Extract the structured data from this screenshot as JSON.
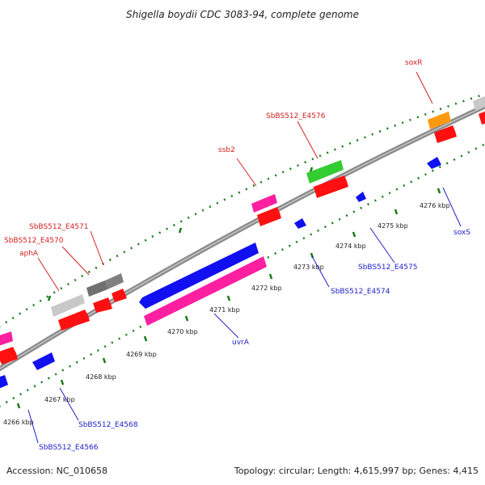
{
  "title": "Shigella boydii CDC 3083-94, complete genome",
  "footer": {
    "accession": "Accession: NC_010658",
    "stats": "Topology: circular; Length: 4,615,997 bp; Genes: 4,415"
  },
  "ticks": [
    {
      "label": "4266 kbp"
    },
    {
      "label": "4267 kbp"
    },
    {
      "label": "4268 kbp"
    },
    {
      "label": "4269 kbp"
    },
    {
      "label": "4270 kbp"
    },
    {
      "label": "4271 kbp"
    },
    {
      "label": "4272 kbp"
    },
    {
      "label": "4273 kbp"
    },
    {
      "label": "4274 kbp"
    },
    {
      "label": "4275 kbp"
    },
    {
      "label": "4276 kbp"
    }
  ],
  "labels": {
    "soxR": "soxR",
    "sbbs4576": "SbBS512_E4576",
    "ssb2": "ssb2",
    "sbbs4571": "SbBS512_E4571",
    "sbbs4570": "SbBS512_E4570",
    "aphA": "aphA",
    "soxS": "soxS",
    "sbbs4575": "SbBS512_E4575",
    "sbbs4574": "SbBS512_E4574",
    "uvrA": "uvrA",
    "sbbs4568": "SbBS512_E4568",
    "sbbs4566": "SbBS512_E4566"
  },
  "colors": {
    "backbone": "#8a8a8a",
    "cds": "#ff1010",
    "forward_gene": "#ff1fa0",
    "reverse_gene": "#1010f0",
    "gray": "#c8c8c8",
    "darkgray": "#707070",
    "green": "#33cc33",
    "orange": "#ff9a10",
    "tick": "#1a7a1a"
  }
}
